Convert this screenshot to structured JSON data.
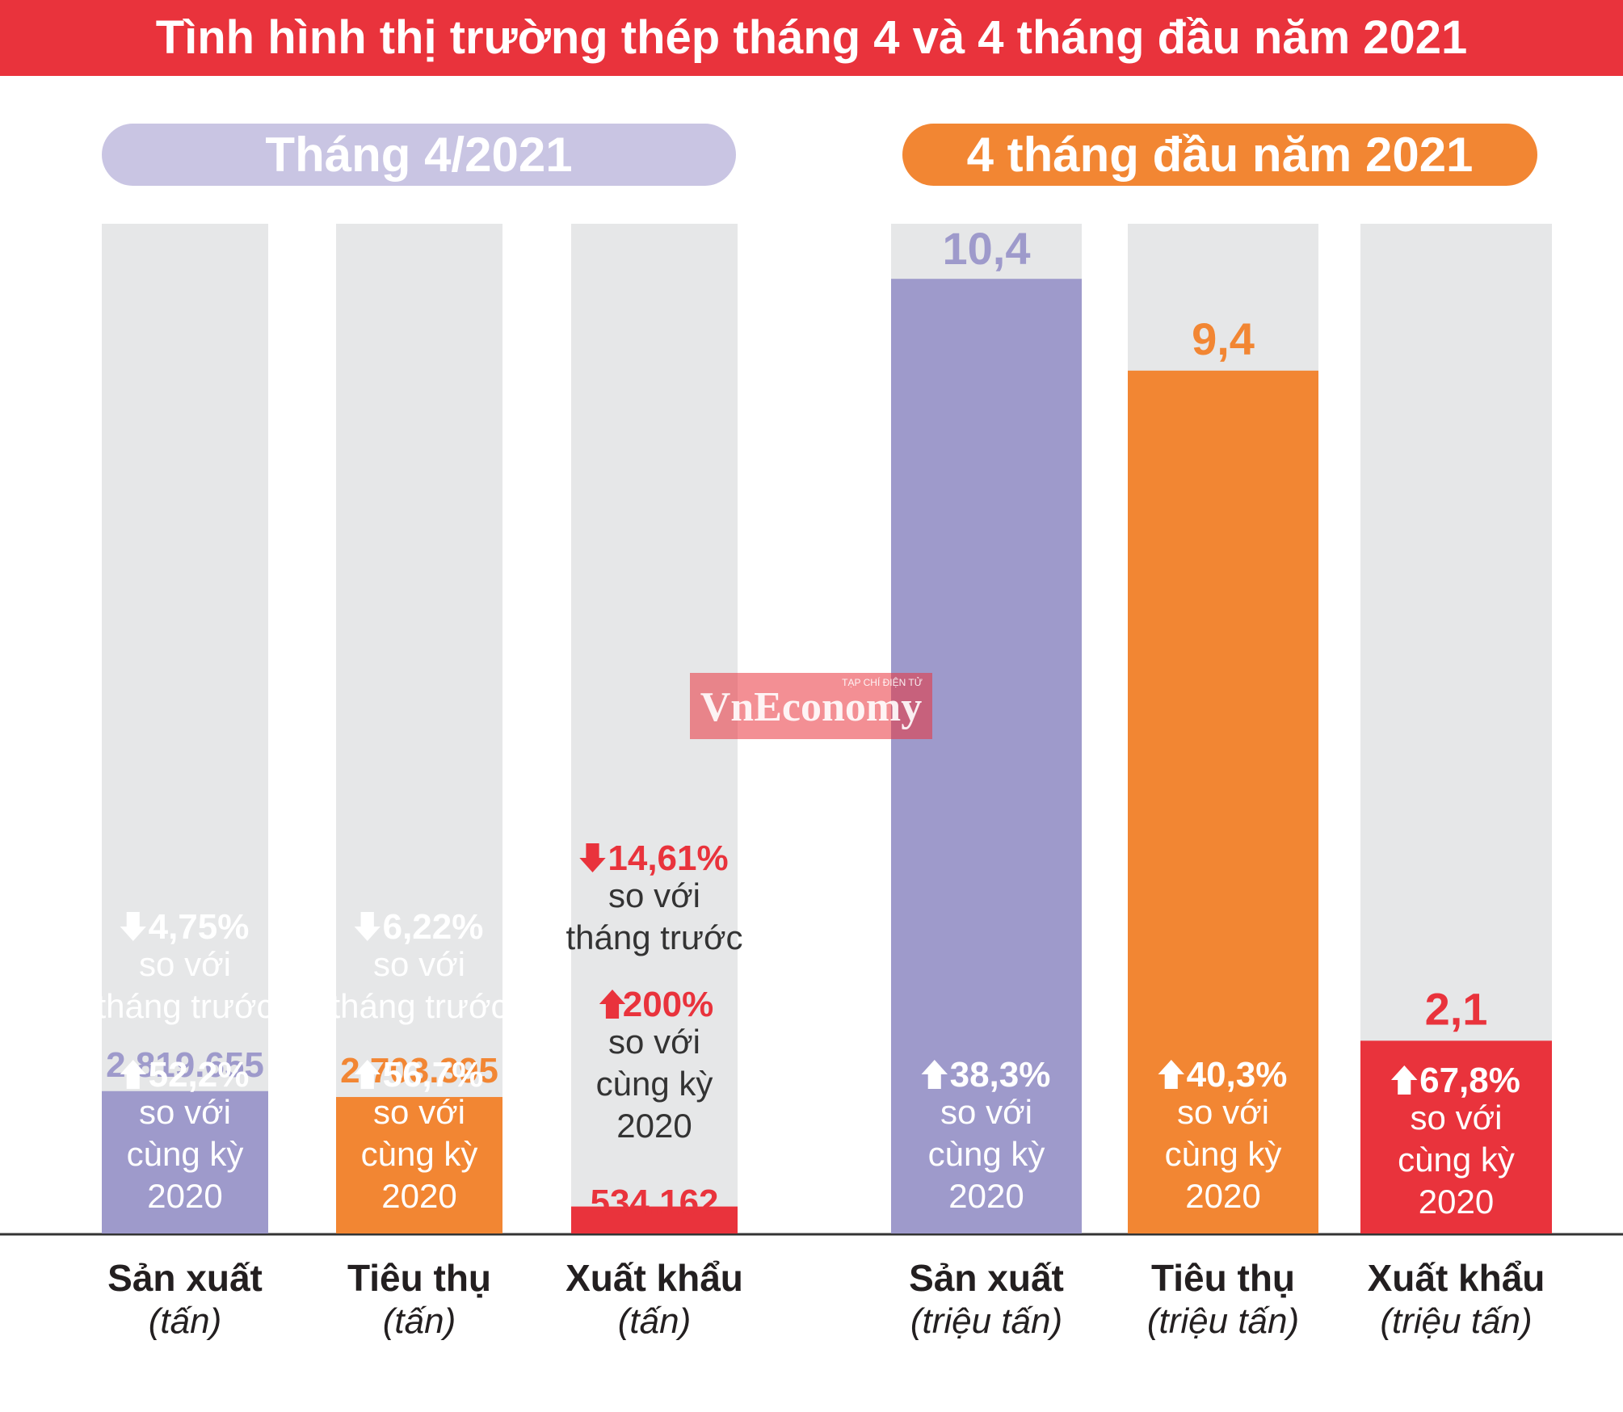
{
  "title": "Tình hình thị trường thép tháng 4 và 4 tháng đầu năm 2021",
  "colors": {
    "banner": "#e9333c",
    "purple": "#9e9acb",
    "orange": "#f28633",
    "red": "#e9333c",
    "track": "#e6e7e8",
    "pill_left": "#c9c5e3",
    "pill_right": "#f28633"
  },
  "watermark": {
    "small": "TẠP CHÍ ĐIỆN TỬ",
    "brand": "VnEconomy"
  },
  "chart_data": [
    {
      "type": "bar",
      "title": "Tháng 4/2021",
      "categories": [
        "Sản xuất",
        "Tiêu thụ",
        "Xuất khẩu"
      ],
      "units": [
        "(tấn)",
        "(tấn)",
        "(tấn)"
      ],
      "values": [
        2819655,
        2703395,
        534162
      ],
      "value_labels": [
        "2.819.655",
        "2.703.395",
        "534.162"
      ],
      "ylim": [
        0,
        20000000
      ],
      "colors": [
        "#9e9acb",
        "#f28633",
        "#e9333c"
      ],
      "annotations": [
        [
          {
            "dir": "down",
            "pct": "4,75%",
            "text": [
              "so với",
              "tháng trước"
            ]
          },
          {
            "dir": "up",
            "pct": "52,2%",
            "text": [
              "so với",
              "cùng kỳ",
              "2020"
            ]
          }
        ],
        [
          {
            "dir": "down",
            "pct": "6,22%",
            "text": [
              "so với",
              "tháng trước"
            ]
          },
          {
            "dir": "up",
            "pct": "56,7%",
            "text": [
              "so với",
              "cùng kỳ",
              "2020"
            ]
          }
        ],
        [
          {
            "dir": "down",
            "pct": "14,61%",
            "text": [
              "so với",
              "tháng trước"
            ]
          },
          {
            "dir": "up",
            "pct": "200%",
            "text": [
              "so với",
              "cùng kỳ",
              "2020"
            ]
          }
        ]
      ]
    },
    {
      "type": "bar",
      "title": "4 tháng đầu năm 2021",
      "categories": [
        "Sản xuất",
        "Tiêu thụ",
        "Xuất khẩu"
      ],
      "units": [
        "(triệu tấn)",
        "(triệu tấn)",
        "(triệu tấn)"
      ],
      "values": [
        10.4,
        9.4,
        2.1
      ],
      "value_labels": [
        "10,4",
        "9,4",
        "2,1"
      ],
      "ylim": [
        0,
        11.0
      ],
      "colors": [
        "#9e9acb",
        "#f28633",
        "#e9333c"
      ],
      "annotations": [
        [
          {
            "dir": "up",
            "pct": "38,3%",
            "text": [
              "so với",
              "cùng kỳ",
              "2020"
            ]
          }
        ],
        [
          {
            "dir": "up",
            "pct": "40,3%",
            "text": [
              "so với",
              "cùng kỳ",
              "2020"
            ]
          }
        ],
        [
          {
            "dir": "up",
            "pct": "67,8%",
            "text": [
              "so với",
              "cùng kỳ",
              "2020"
            ]
          }
        ]
      ]
    }
  ]
}
